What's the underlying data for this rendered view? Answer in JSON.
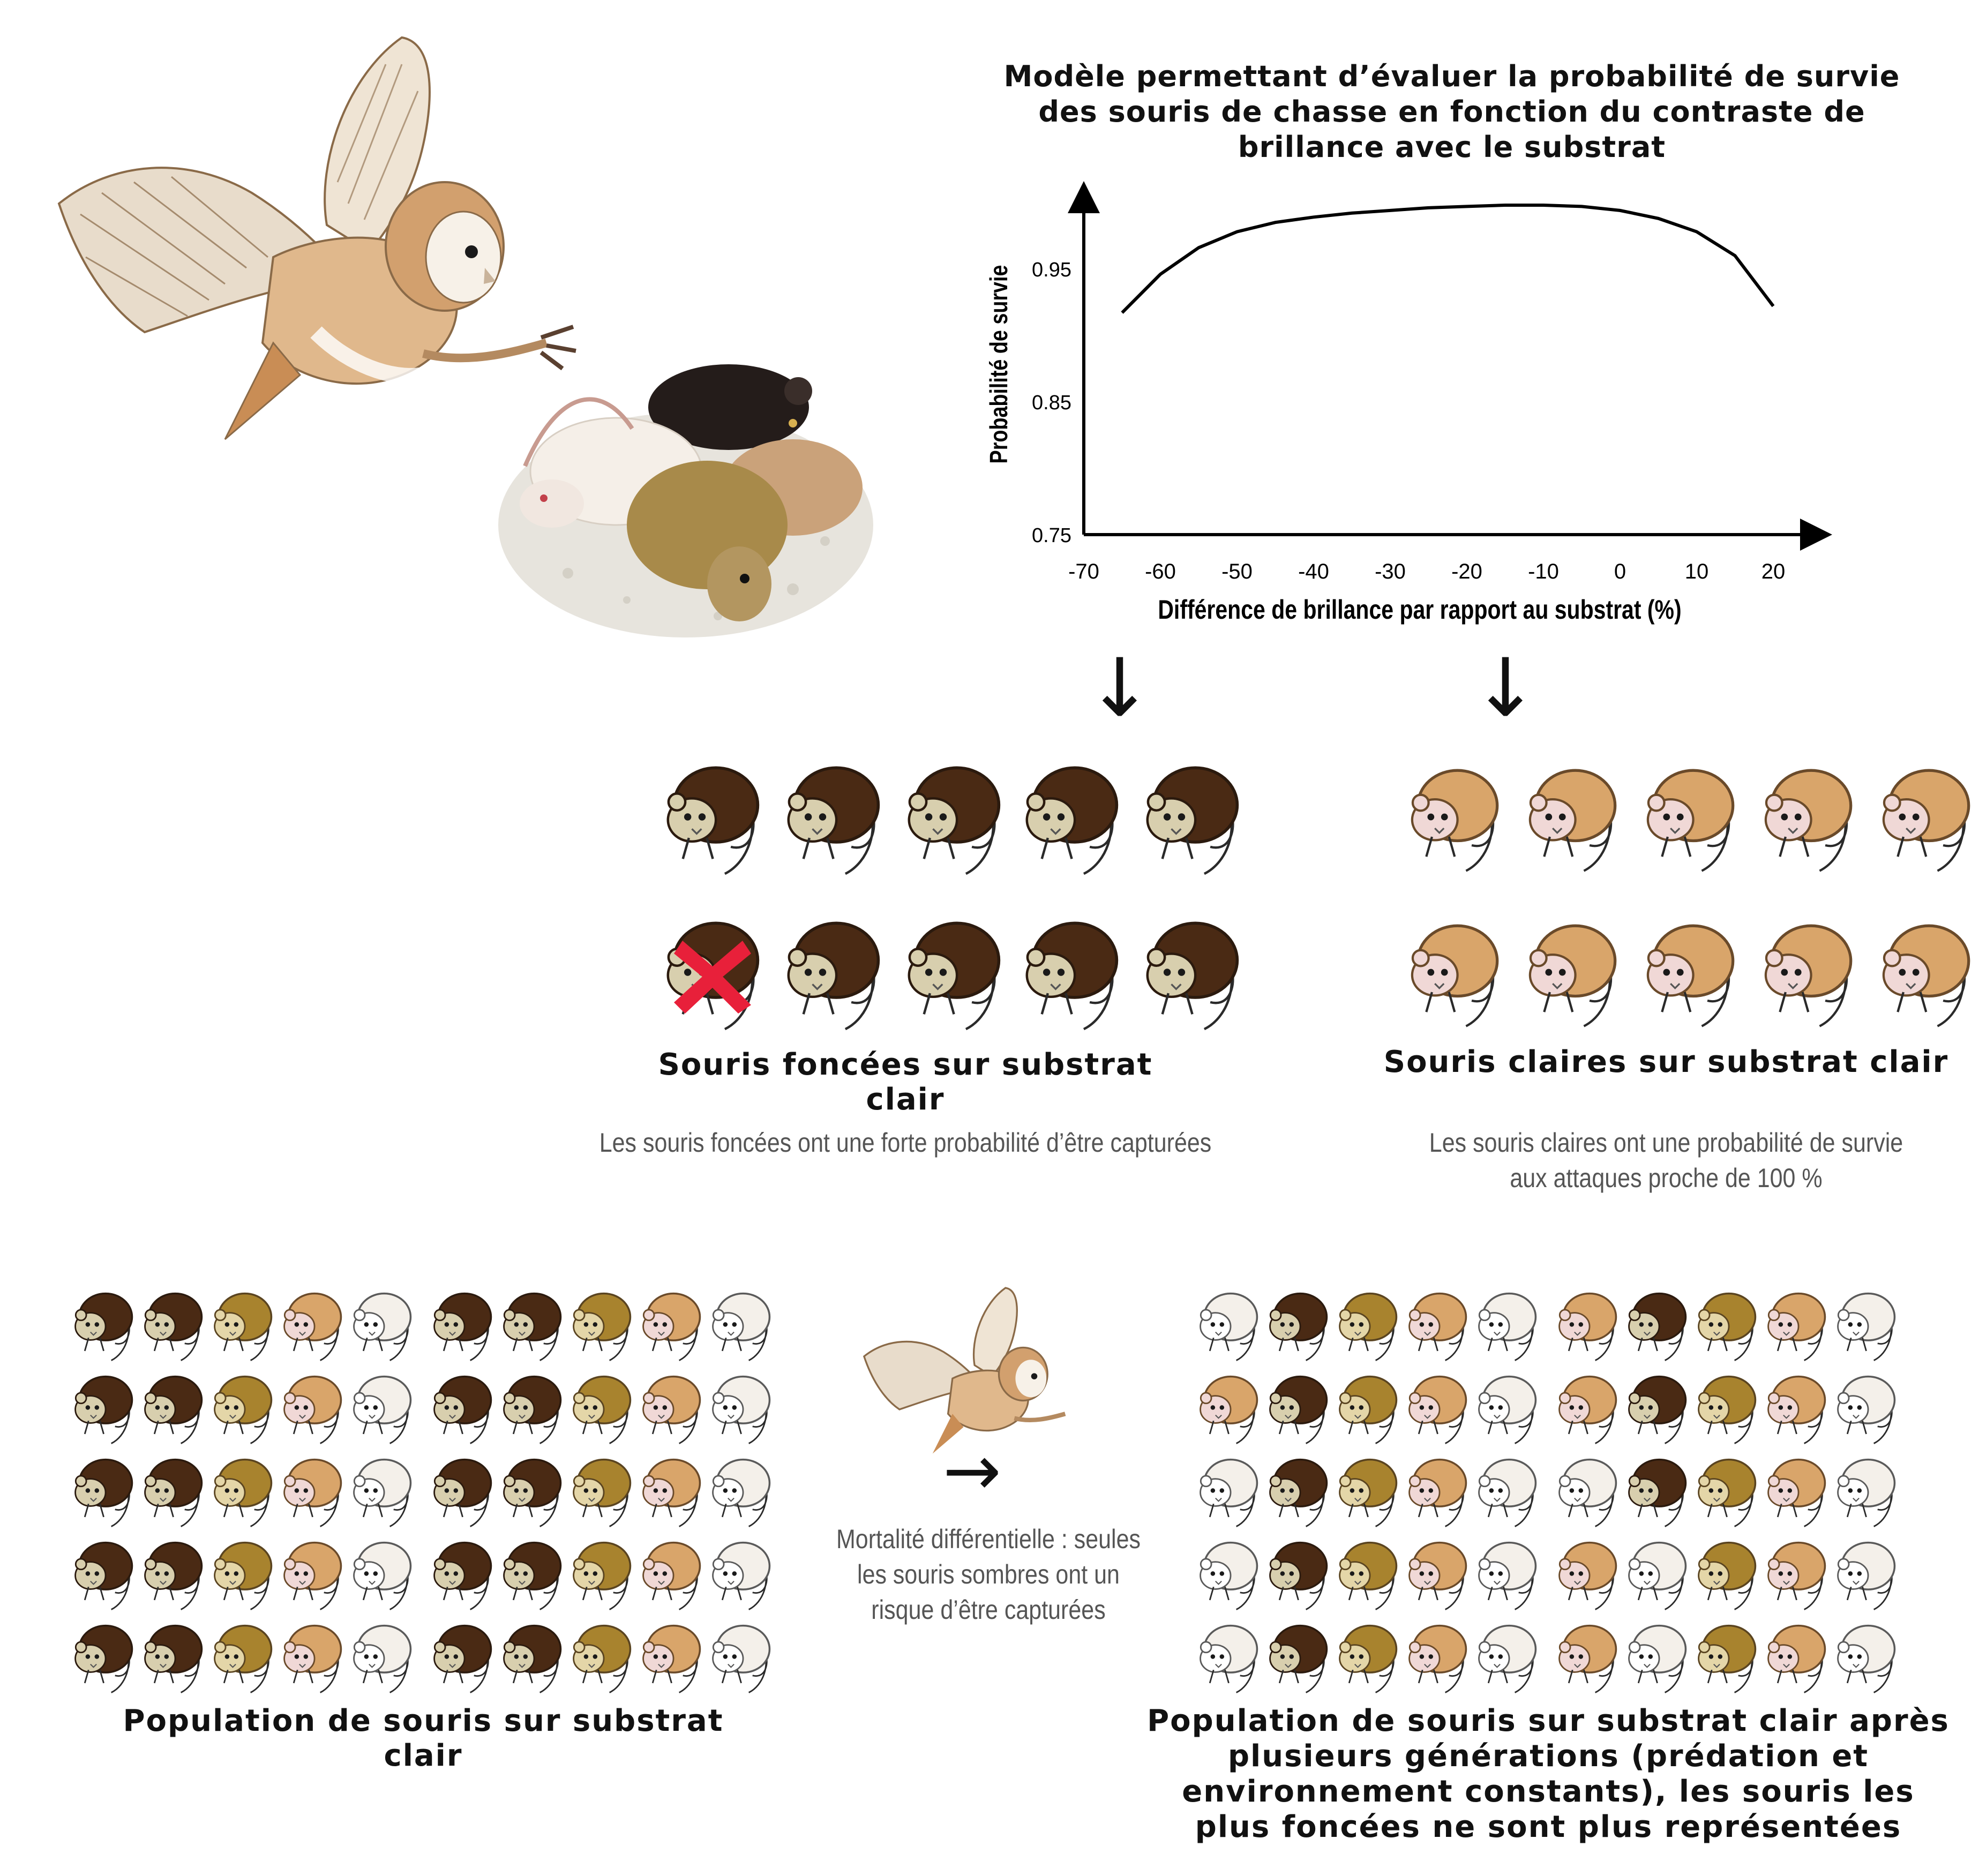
{
  "chart_data": {
    "type": "line",
    "title": "Modèle permettant d’évaluer la probabilité de survie des souris de chasse en fonction du contraste de brillance avec le substrat",
    "xlabel": "Différence de brillance par rapport au substrat (%)",
    "ylabel": "Probabilité de survie",
    "x_ticks": [
      "-70",
      "-60",
      "-50",
      "-40",
      "-30",
      "-20",
      "-10",
      "0",
      "10",
      "20"
    ],
    "y_ticks": [
      "0.95",
      "0.85",
      "0.75"
    ],
    "xlim": [
      -70,
      20
    ],
    "ylim": [
      0.75,
      1.0
    ],
    "grid": false,
    "series": [
      {
        "x": [
          -65,
          -60,
          -55,
          -50,
          -45,
          -40,
          -35,
          -30,
          -25,
          -20,
          -15,
          -10,
          -5,
          0,
          5,
          10,
          15,
          20
        ],
        "values": [
          0.917,
          0.946,
          0.966,
          0.978,
          0.985,
          0.989,
          0.992,
          0.994,
          0.996,
          0.997,
          0.998,
          0.998,
          0.997,
          0.994,
          0.988,
          0.978,
          0.96,
          0.922
        ]
      }
    ]
  },
  "dark_group": {
    "label": "Souris foncées sur substrat clair",
    "description": "Les souris foncées ont une forte probabilité d’être capturées"
  },
  "light_group": {
    "label": "Souris claires sur substrat clair",
    "description": "Les souris claires ont une probabilité de survie aux attaques proche de 100 %"
  },
  "population_before": {
    "label": "Population de souris sur substrat clair"
  },
  "mortality_text": "Mortalité différentielle : seules les souris sombres ont un risque d’être capturées",
  "population_after": {
    "label": "Population de souris sur substrat clair après plusieurs générations (prédation et environnement constants), les souris les plus foncées ne sont plus représentées"
  },
  "icons": {
    "owl": "barn-owl-icon",
    "mice": "mice-group-icon",
    "mouse": "mouse-icon",
    "cross": "red-cross-icon"
  },
  "colors": {
    "dark_mouse": "#4a2a14",
    "golden_mouse": "#a8832e",
    "light_mouse": "#d9a56a",
    "pale_mouse": "#f4f0ea",
    "cross_red": "#e8203a"
  }
}
